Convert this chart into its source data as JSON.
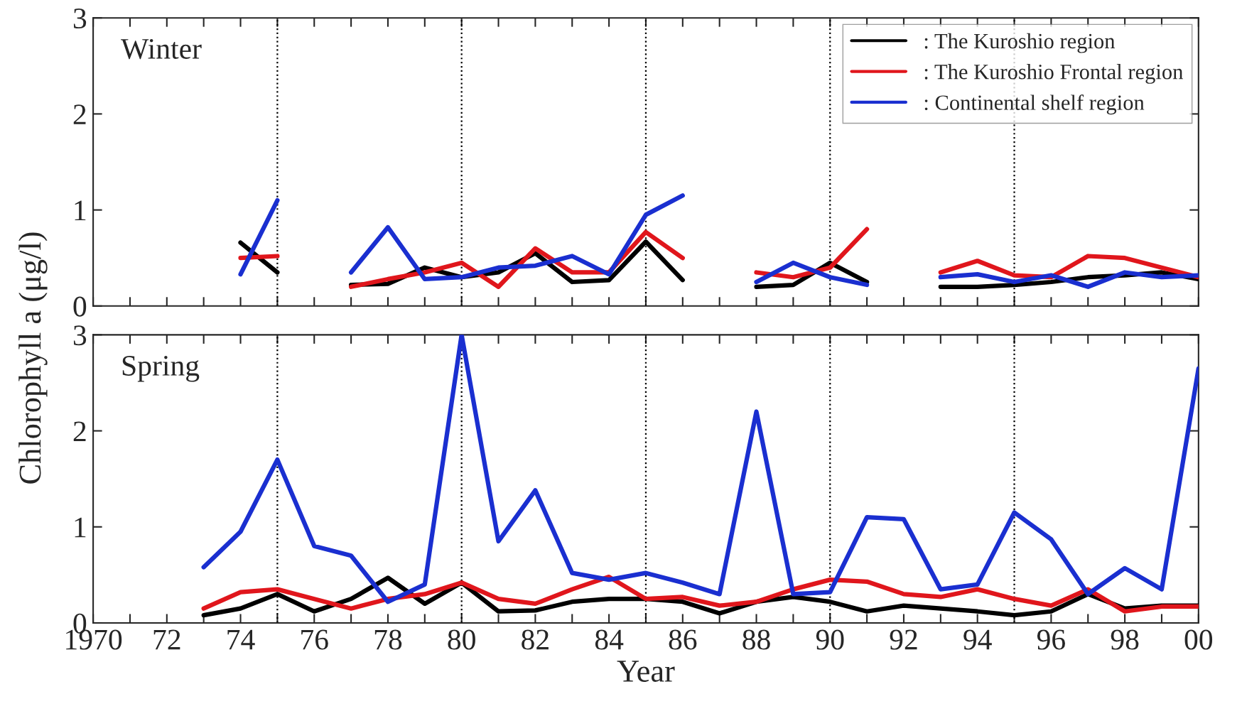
{
  "chart_data": [
    {
      "type": "line",
      "title": "Winter",
      "ylabel": "Chlorophyll a (μg/l)",
      "x": [
        1974,
        1975,
        1976,
        1977,
        1978,
        1979,
        1980,
        1981,
        1982,
        1983,
        1984,
        1985,
        1986,
        1987,
        1988,
        1989,
        1990,
        1991,
        1992,
        1993,
        1994,
        1995,
        1996,
        1997,
        1998,
        1999,
        2000
      ],
      "series": [
        {
          "name": ": The Kuroshio region",
          "color": "#000000",
          "values": [
            0.66,
            0.35,
            null,
            0.22,
            0.23,
            0.4,
            0.3,
            0.35,
            0.55,
            0.25,
            0.27,
            0.67,
            0.27,
            null,
            0.2,
            0.22,
            0.45,
            0.25,
            null,
            0.2,
            0.2,
            0.22,
            0.25,
            0.3,
            0.32,
            0.35,
            0.28
          ]
        },
        {
          "name": ": The Kuroshio Frontal region",
          "color": "#e0161c",
          "values": [
            0.5,
            0.52,
            null,
            0.2,
            0.28,
            0.35,
            0.45,
            0.2,
            0.6,
            0.35,
            0.35,
            0.77,
            0.5,
            null,
            0.35,
            0.3,
            0.4,
            0.8,
            null,
            0.35,
            0.47,
            0.32,
            0.3,
            0.52,
            0.5,
            0.4,
            0.3
          ]
        },
        {
          "name": ": Continental shelf region",
          "color": "#1a2fd0",
          "values": [
            0.33,
            1.1,
            null,
            0.35,
            0.82,
            0.28,
            0.3,
            0.4,
            0.42,
            0.52,
            0.33,
            0.95,
            1.15,
            null,
            0.25,
            0.45,
            0.3,
            0.22,
            null,
            0.3,
            0.33,
            0.25,
            0.32,
            0.2,
            0.35,
            0.3,
            0.32
          ]
        }
      ],
      "xlim": [
        1970,
        2000
      ],
      "ylim": [
        0,
        3
      ],
      "yticks": [
        0,
        1,
        2,
        3
      ],
      "xticks": [
        1970,
        1971,
        1972,
        1973,
        1974,
        1975,
        1976,
        1977,
        1978,
        1979,
        1980,
        1981,
        1982,
        1983,
        1984,
        1985,
        1986,
        1987,
        1988,
        1989,
        1990,
        1991,
        1992,
        1993,
        1994,
        1995,
        1996,
        1997,
        1998,
        1999,
        2000
      ],
      "ref_lines": [
        {
          "axis": "x",
          "value": 1975,
          "color": "#000000",
          "line_style": "dotted"
        },
        {
          "axis": "x",
          "value": 1980,
          "color": "#000000",
          "line_style": "dotted"
        },
        {
          "axis": "x",
          "value": 1985,
          "color": "#000000",
          "line_style": "dotted"
        },
        {
          "axis": "x",
          "value": 1990,
          "color": "#000000",
          "line_style": "dotted"
        },
        {
          "axis": "x",
          "value": 1995,
          "color": "#000000",
          "line_style": "dotted"
        }
      ],
      "tick_labels": "y",
      "legend": "top right",
      "grid": false,
      "line_style": "solid",
      "marker": "none"
    },
    {
      "type": "line",
      "title": "Spring",
      "xlabel": "Year",
      "x": [
        1973,
        1974,
        1975,
        1976,
        1977,
        1978,
        1979,
        1980,
        1981,
        1982,
        1983,
        1984,
        1985,
        1986,
        1987,
        1988,
        1989,
        1990,
        1991,
        1992,
        1993,
        1994,
        1995,
        1996,
        1997,
        1998,
        1999,
        2000
      ],
      "series": [
        {
          "color": "#000000",
          "values": [
            0.08,
            0.15,
            0.3,
            0.12,
            0.25,
            0.47,
            0.2,
            0.42,
            0.12,
            0.13,
            0.22,
            0.25,
            0.25,
            0.22,
            0.1,
            0.22,
            0.27,
            0.22,
            0.12,
            0.18,
            0.15,
            0.12,
            0.08,
            0.12,
            0.3,
            0.15,
            0.18,
            0.18
          ]
        },
        {
          "color": "#e0161c",
          "values": [
            0.15,
            0.32,
            0.35,
            0.25,
            0.15,
            0.25,
            0.3,
            0.42,
            0.25,
            0.2,
            0.35,
            0.48,
            0.25,
            0.27,
            0.18,
            0.22,
            0.35,
            0.45,
            0.43,
            0.3,
            0.27,
            0.35,
            0.25,
            0.18,
            0.35,
            0.12,
            0.17,
            0.17
          ]
        },
        {
          "color": "#1a2fd0",
          "values": [
            0.58,
            0.95,
            1.7,
            0.8,
            0.7,
            0.22,
            0.4,
            3.0,
            0.85,
            1.38,
            0.52,
            0.45,
            0.52,
            0.42,
            0.3,
            2.2,
            0.3,
            0.32,
            1.1,
            1.08,
            0.35,
            0.4,
            1.15,
            0.87,
            0.3,
            0.57,
            0.35,
            2.65
          ]
        }
      ],
      "xlim": [
        1970,
        2000
      ],
      "ylim": [
        0,
        3
      ],
      "yticks": [
        0,
        1,
        2,
        3
      ],
      "xticks": [
        {
          "value": 1970,
          "label": "1970"
        },
        {
          "value": 1971,
          "label": null
        },
        {
          "value": 1972,
          "label": "72"
        },
        {
          "value": 1973,
          "label": null
        },
        {
          "value": 1974,
          "label": "74"
        },
        {
          "value": 1975,
          "label": null
        },
        {
          "value": 1976,
          "label": "76"
        },
        {
          "value": 1977,
          "label": null
        },
        {
          "value": 1978,
          "label": "78"
        },
        {
          "value": 1979,
          "label": null
        },
        {
          "value": 1980,
          "label": "80"
        },
        {
          "value": 1981,
          "label": null
        },
        {
          "value": 1982,
          "label": "82"
        },
        {
          "value": 1983,
          "label": null
        },
        {
          "value": 1984,
          "label": "84"
        },
        {
          "value": 1985,
          "label": null
        },
        {
          "value": 1986,
          "label": "86"
        },
        {
          "value": 1987,
          "label": null
        },
        {
          "value": 1988,
          "label": "88"
        },
        {
          "value": 1989,
          "label": null
        },
        {
          "value": 1990,
          "label": "90"
        },
        {
          "value": 1991,
          "label": null
        },
        {
          "value": 1992,
          "label": "92"
        },
        {
          "value": 1993,
          "label": null
        },
        {
          "value": 1994,
          "label": "94"
        },
        {
          "value": 1995,
          "label": null
        },
        {
          "value": 1996,
          "label": "96"
        },
        {
          "value": 1997,
          "label": null
        },
        {
          "value": 1998,
          "label": "98"
        },
        {
          "value": 1999,
          "label": null
        },
        {
          "value": 2000,
          "label": "00"
        }
      ],
      "ref_lines": [
        {
          "axis": "x",
          "value": 1975,
          "color": "#000000",
          "line_style": "dotted"
        },
        {
          "axis": "x",
          "value": 1980,
          "color": "#000000",
          "line_style": "dotted"
        },
        {
          "axis": "x",
          "value": 1985,
          "color": "#000000",
          "line_style": "dotted"
        },
        {
          "axis": "x",
          "value": 1990,
          "color": "#000000",
          "line_style": "dotted"
        },
        {
          "axis": "x",
          "value": 1995,
          "color": "#000000",
          "line_style": "dotted"
        }
      ],
      "grid": false,
      "line_style": "solid",
      "marker": "none"
    }
  ]
}
